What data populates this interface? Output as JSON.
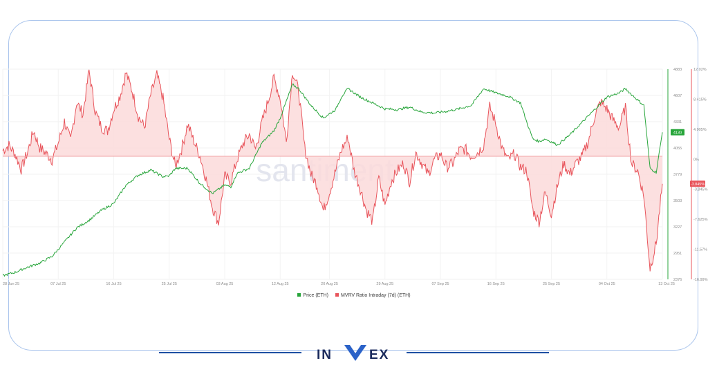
{
  "frame": {
    "border_color": "#a9c4ec"
  },
  "watermark": "santiment",
  "legend": [
    {
      "name": "Price (ETH)",
      "color": "#27a53a"
    },
    {
      "name": "MVRV Ratio Intraday (7d) (ETH)",
      "color": "#e8545b"
    }
  ],
  "logo": {
    "text": "INVEX",
    "color": "#1a2a5c",
    "accent": "#2b62c8"
  },
  "chart_data": {
    "type": "line",
    "x_tick_labels": [
      "28 Jun 25",
      "07 Jul 25",
      "16 Jul 25",
      "25 Jul 25",
      "03 Aug 25",
      "12 Aug 25",
      "20 Aug 25",
      "29 Aug 25",
      "07 Sep 25",
      "16 Sep 25",
      "25 Sep 25",
      "04 Oct 25",
      "13 Oct 25"
    ],
    "x_tick_positions": [
      0,
      9,
      18,
      27,
      36,
      45,
      53,
      62,
      71,
      80,
      89,
      98,
      107
    ],
    "series": [
      {
        "name": "Price (ETH)",
        "axis": "left",
        "color": "#27a53a",
        "ylim": [
          2376,
          4883
        ],
        "tick_labels": [
          "4883",
          "4607",
          "4331",
          "4055",
          "3779",
          "3503",
          "3227",
          "2951",
          "2376"
        ],
        "current_label": "4130",
        "x": [
          0,
          2,
          4,
          6,
          8,
          10,
          12,
          14,
          16,
          18,
          20,
          22,
          24,
          26,
          27,
          28,
          30,
          32,
          34,
          36,
          37,
          38,
          40,
          42,
          44,
          45,
          46,
          47,
          48,
          50,
          52,
          54,
          55,
          56,
          58,
          60,
          62,
          64,
          66,
          68,
          70,
          72,
          74,
          76,
          78,
          80,
          82,
          84,
          85,
          86,
          87,
          88,
          90,
          92,
          94,
          96,
          98,
          100,
          101,
          102,
          104,
          105,
          106,
          107
        ],
        "values": [
          2420,
          2460,
          2520,
          2570,
          2650,
          2820,
          2990,
          3080,
          3200,
          3280,
          3500,
          3620,
          3680,
          3600,
          3610,
          3700,
          3700,
          3520,
          3400,
          3500,
          3480,
          3640,
          3700,
          4000,
          4150,
          4300,
          4500,
          4700,
          4650,
          4450,
          4300,
          4400,
          4560,
          4650,
          4550,
          4480,
          4410,
          4400,
          4430,
          4370,
          4360,
          4380,
          4410,
          4450,
          4650,
          4600,
          4560,
          4480,
          4250,
          4050,
          4020,
          4050,
          3980,
          4100,
          4250,
          4400,
          4550,
          4600,
          4650,
          4580,
          4450,
          3700,
          3650,
          4130
        ]
      },
      {
        "name": "MVRV Ratio Intraday (7d) (ETH)",
        "axis": "right",
        "color": "#e8545b",
        "ylim": [
          -16.99,
          12.02
        ],
        "tick_labels": [
          "12.02%",
          "8.415%",
          "4.905%",
          "0%",
          "-3.845%",
          "-7.625%",
          "-11.57%",
          "-16.99%"
        ],
        "current_label": "-3.845%",
        "x": [
          0,
          1,
          2,
          3,
          4,
          5,
          6,
          7,
          8,
          9,
          10,
          11,
          12,
          13,
          14,
          15,
          16,
          17,
          18,
          19,
          20,
          21,
          22,
          23,
          24,
          25,
          26,
          27,
          28,
          29,
          30,
          31,
          32,
          33,
          34,
          35,
          36,
          37,
          38,
          39,
          40,
          41,
          42,
          43,
          44,
          45,
          46,
          47,
          48,
          49,
          50,
          51,
          52,
          53,
          54,
          55,
          56,
          57,
          58,
          59,
          60,
          61,
          62,
          63,
          64,
          65,
          66,
          67,
          68,
          69,
          70,
          71,
          72,
          73,
          74,
          75,
          76,
          77,
          78,
          79,
          80,
          81,
          82,
          83,
          84,
          85,
          86,
          87,
          88,
          89,
          90,
          91,
          92,
          93,
          94,
          95,
          96,
          97,
          98,
          99,
          100,
          101,
          102,
          103,
          104,
          105,
          106,
          107
        ],
        "values": [
          0.8,
          1.5,
          0.3,
          -1.8,
          0.5,
          3.5,
          1.2,
          0.4,
          -0.5,
          1.8,
          4.8,
          2.1,
          7.5,
          5.8,
          11.8,
          6.2,
          4.0,
          3.5,
          6.5,
          8.3,
          11.5,
          9.0,
          5.5,
          4.0,
          8.5,
          11.2,
          8.0,
          2.4,
          -1.5,
          1.0,
          4.4,
          2.1,
          0.0,
          -3.2,
          -7.0,
          -9.2,
          -2.8,
          -3.5,
          -0.5,
          1.8,
          3.0,
          1.0,
          4.5,
          7.5,
          10.8,
          8.0,
          2.0,
          11.8,
          9.0,
          1.0,
          -2.5,
          -4.0,
          -7.5,
          -5.0,
          -2.0,
          1.0,
          2.6,
          -2.0,
          -4.5,
          -7.5,
          -9.0,
          -3.0,
          -6.8,
          -3.5,
          -2.0,
          -1.0,
          -3.5,
          0.5,
          -1.0,
          -2.5,
          -0.5,
          0.3,
          -1.5,
          -1.0,
          0.8,
          1.0,
          0.0,
          0.5,
          1.5,
          6.8,
          4.5,
          1.0,
          -0.5,
          0.3,
          -1.5,
          -2.0,
          -7.5,
          -9.0,
          -5.0,
          -8.0,
          -4.0,
          -1.0,
          -2.5,
          -1.0,
          0.0,
          2.1,
          5.5,
          7.5,
          6.5,
          5.0,
          4.0,
          6.8,
          -1.0,
          -2.0,
          -5.5,
          -15.5,
          -12.0,
          -3.8
        ]
      }
    ],
    "xlim": [
      0,
      107
    ],
    "grid": true,
    "legend_position": "bottom-center"
  }
}
